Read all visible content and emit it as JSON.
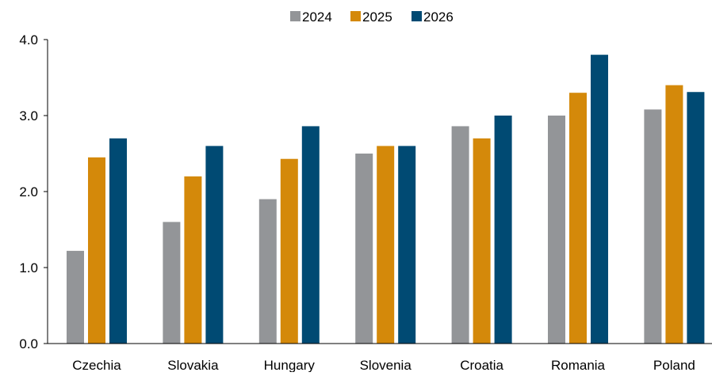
{
  "chart_data": {
    "type": "bar",
    "title": "",
    "xlabel": "",
    "ylabel": "",
    "categories": [
      "Czechia",
      "Slovakia",
      "Hungary",
      "Slovenia",
      "Croatia",
      "Romania",
      "Poland"
    ],
    "series": [
      {
        "name": "2024",
        "color": "#939598",
        "values": [
          1.22,
          1.6,
          1.9,
          2.5,
          2.86,
          3.0,
          3.08
        ]
      },
      {
        "name": "2025",
        "color": "#D4890A",
        "values": [
          2.45,
          2.2,
          2.43,
          2.6,
          2.7,
          3.3,
          3.4
        ]
      },
      {
        "name": "2026",
        "color": "#004A73",
        "values": [
          2.7,
          2.6,
          2.86,
          2.6,
          3.0,
          3.8,
          3.31
        ]
      }
    ],
    "ylim": [
      0,
      4
    ],
    "yticks": [
      0,
      1,
      2,
      3,
      4
    ],
    "ytick_labels": [
      "0.0",
      "1.0",
      "2.0",
      "3.0",
      "4.0"
    ],
    "grid": false,
    "legend_position": "top-center"
  }
}
